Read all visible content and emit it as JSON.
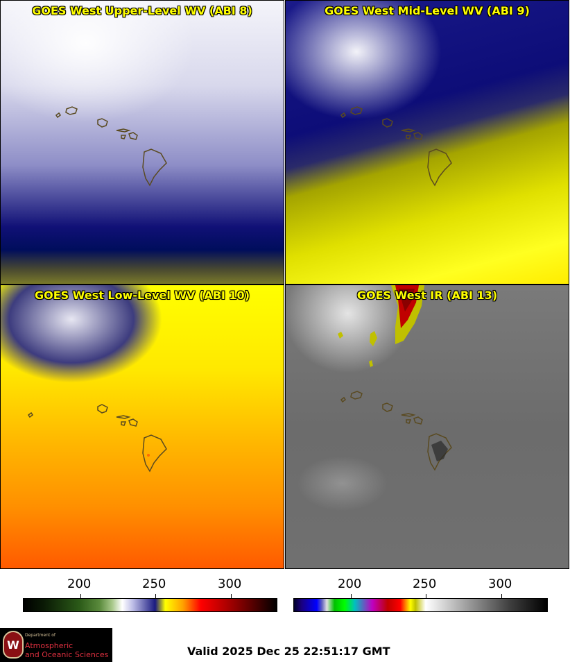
{
  "panels": [
    {
      "title": "GOES West Upper-Level WV (ABI 8)"
    },
    {
      "title": "GOES West Mid-Level WV (ABI 9)"
    },
    {
      "title": "GOES West Low-Level WV (ABI 10)"
    },
    {
      "title": "GOES West IR (ABI 13)"
    }
  ],
  "colorbars": {
    "left_ticks": [
      "200",
      "250",
      "300"
    ],
    "right_ticks": [
      "200",
      "250",
      "300"
    ]
  },
  "logo": {
    "dept": "Department of",
    "name_line1": "Atmospheric",
    "name_line2": "and Oceanic Sciences",
    "seal_letter": "W"
  },
  "valid_text": "Valid 2025 Dec 25 22:51:17 GMT"
}
